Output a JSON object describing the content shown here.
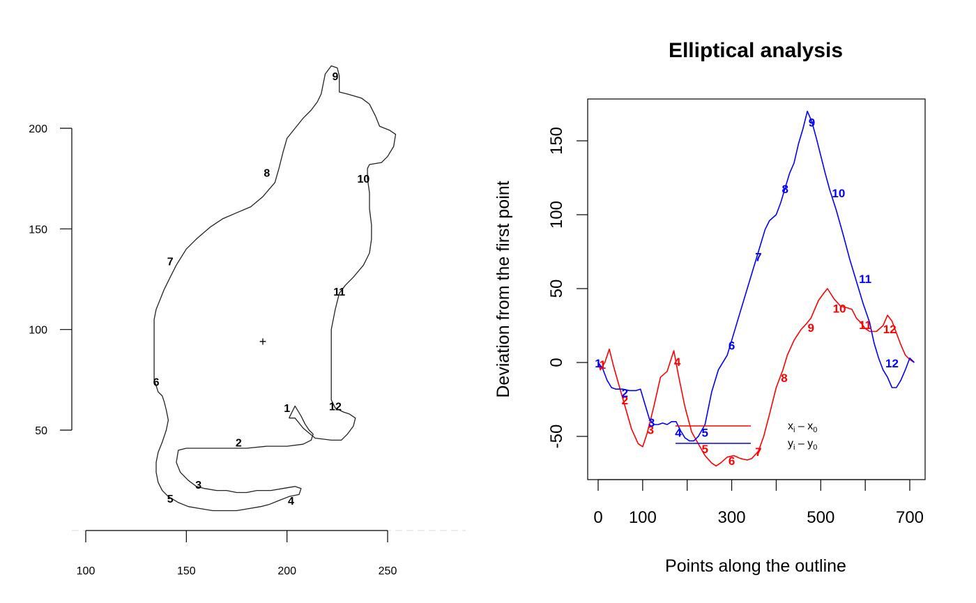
{
  "chart_data": [
    {
      "type": "line",
      "title": "",
      "xlabel": "",
      "ylabel": "",
      "xlim": [
        100,
        250
      ],
      "ylim": [
        50,
        200
      ],
      "x_ticks": [
        "100",
        "150",
        "200",
        "250"
      ],
      "y_ticks": [
        "50",
        "100",
        "150",
        "200"
      ],
      "grid": false,
      "centroid": {
        "x": 188,
        "y": 94,
        "marker": "+"
      },
      "outline_points": [
        [
          201,
          56
        ],
        [
          204,
          62
        ],
        [
          207,
          57
        ],
        [
          209,
          53
        ],
        [
          211,
          50
        ],
        [
          213,
          48
        ],
        [
          212,
          45
        ],
        [
          208,
          43
        ],
        [
          200,
          42
        ],
        [
          190,
          42
        ],
        [
          180,
          41
        ],
        [
          170,
          41
        ],
        [
          160,
          41
        ],
        [
          150,
          41
        ],
        [
          146,
          40
        ],
        [
          145,
          34
        ],
        [
          147,
          29
        ],
        [
          151,
          25
        ],
        [
          155,
          22
        ],
        [
          159,
          21
        ],
        [
          165,
          20
        ],
        [
          170,
          20
        ],
        [
          175,
          19
        ],
        [
          180,
          19
        ],
        [
          185,
          20
        ],
        [
          192,
          20
        ],
        [
          198,
          21
        ],
        [
          204,
          22
        ],
        [
          207,
          21
        ],
        [
          206,
          18
        ],
        [
          201,
          17
        ],
        [
          196,
          15
        ],
        [
          191,
          13
        ],
        [
          187,
          12
        ],
        [
          181,
          11
        ],
        [
          175,
          10
        ],
        [
          169,
          10
        ],
        [
          163,
          10
        ],
        [
          157,
          11
        ],
        [
          151,
          12
        ],
        [
          146,
          14
        ],
        [
          141,
          17
        ],
        [
          138,
          20
        ],
        [
          136,
          24
        ],
        [
          135,
          29
        ],
        [
          135,
          34
        ],
        [
          136,
          39
        ],
        [
          138,
          44
        ],
        [
          140,
          50
        ],
        [
          141,
          55
        ],
        [
          140,
          60
        ],
        [
          139,
          64
        ],
        [
          138,
          67
        ],
        [
          136,
          69
        ],
        [
          135,
          72
        ],
        [
          134,
          75
        ],
        [
          134,
          80
        ],
        [
          134,
          90
        ],
        [
          134,
          100
        ],
        [
          134,
          105
        ],
        [
          135,
          110
        ],
        [
          137,
          115
        ],
        [
          139,
          120
        ],
        [
          142,
          126
        ],
        [
          145,
          132
        ],
        [
          150,
          140
        ],
        [
          155,
          145
        ],
        [
          162,
          151
        ],
        [
          168,
          155
        ],
        [
          175,
          158
        ],
        [
          182,
          161
        ],
        [
          188,
          166
        ],
        [
          194,
          173
        ],
        [
          196,
          180
        ],
        [
          198,
          188
        ],
        [
          200,
          195
        ],
        [
          204,
          200
        ],
        [
          208,
          205
        ],
        [
          212,
          209
        ],
        [
          215,
          213
        ],
        [
          217,
          217
        ],
        [
          218,
          222
        ],
        [
          219,
          227
        ],
        [
          222,
          231
        ],
        [
          225,
          230
        ],
        [
          226,
          226
        ],
        [
          226,
          222
        ],
        [
          226,
          218
        ],
        [
          230,
          217
        ],
        [
          237,
          215
        ],
        [
          241,
          212
        ],
        [
          244,
          206
        ],
        [
          246,
          201
        ],
        [
          251,
          199
        ],
        [
          254,
          197
        ],
        [
          253,
          191
        ],
        [
          250,
          186
        ],
        [
          247,
          183
        ],
        [
          241,
          182
        ],
        [
          240,
          180
        ],
        [
          240,
          175
        ],
        [
          241,
          168
        ],
        [
          241,
          160
        ],
        [
          242,
          152
        ],
        [
          242,
          145
        ],
        [
          241,
          138
        ],
        [
          238,
          132
        ],
        [
          233,
          126
        ],
        [
          229,
          122
        ],
        [
          226,
          118
        ],
        [
          224,
          110
        ],
        [
          222,
          100
        ],
        [
          222,
          90
        ],
        [
          222,
          80
        ],
        [
          222,
          70
        ],
        [
          222,
          65
        ],
        [
          224,
          61
        ],
        [
          228,
          59
        ],
        [
          231,
          58
        ],
        [
          234,
          56
        ],
        [
          233,
          52
        ],
        [
          230,
          48
        ],
        [
          227,
          45
        ],
        [
          222,
          45
        ],
        [
          214,
          46
        ],
        [
          208,
          51
        ],
        [
          204,
          56
        ],
        [
          201,
          56
        ]
      ],
      "point_labels": [
        {
          "label": "1",
          "x": 200,
          "y": 61
        },
        {
          "label": "2",
          "x": 176,
          "y": 44
        },
        {
          "label": "3",
          "x": 156,
          "y": 23
        },
        {
          "label": "4",
          "x": 202,
          "y": 15
        },
        {
          "label": "5",
          "x": 142,
          "y": 16
        },
        {
          "label": "6",
          "x": 135,
          "y": 74
        },
        {
          "label": "7",
          "x": 142,
          "y": 134
        },
        {
          "label": "8",
          "x": 190,
          "y": 178
        },
        {
          "label": "9",
          "x": 224,
          "y": 226
        },
        {
          "label": "10",
          "x": 238,
          "y": 175
        },
        {
          "label": "11",
          "x": 226,
          "y": 119
        },
        {
          "label": "12",
          "x": 224,
          "y": 62
        }
      ],
      "series": []
    },
    {
      "type": "line",
      "title": "Elliptical analysis",
      "xlabel": "Points along the outline",
      "ylabel": "Deviation from the first point",
      "xlim": [
        0,
        710
      ],
      "ylim": [
        -75,
        175
      ],
      "x_ticks": [
        "0",
        "100",
        "300",
        "500",
        "700"
      ],
      "y_ticks": [
        "-50",
        "0",
        "50",
        "100",
        "150"
      ],
      "grid": false,
      "series": [
        {
          "name": "xᵢ − x₀",
          "color": "#ff0000",
          "points": [
            [
              0,
              0
            ],
            [
              5,
              -5
            ],
            [
              15,
              0
            ],
            [
              25,
              9
            ],
            [
              35,
              -3
            ],
            [
              55,
              -24
            ],
            [
              75,
              -45
            ],
            [
              90,
              -55
            ],
            [
              100,
              -57
            ],
            [
              110,
              -48
            ],
            [
              125,
              -30
            ],
            [
              140,
              -10
            ],
            [
              155,
              -6
            ],
            [
              170,
              8
            ],
            [
              180,
              -8
            ],
            [
              195,
              -30
            ],
            [
              210,
              -47
            ],
            [
              225,
              -55
            ],
            [
              240,
              -63
            ],
            [
              255,
              -68
            ],
            [
              265,
              -70
            ],
            [
              275,
              -68
            ],
            [
              290,
              -64
            ],
            [
              305,
              -63
            ],
            [
              320,
              -65
            ],
            [
              335,
              -66
            ],
            [
              345,
              -65
            ],
            [
              360,
              -60
            ],
            [
              372,
              -50
            ],
            [
              385,
              -35
            ],
            [
              400,
              -17
            ],
            [
              415,
              -5
            ],
            [
              425,
              5
            ],
            [
              440,
              15
            ],
            [
              455,
              22
            ],
            [
              470,
              27
            ],
            [
              478,
              30
            ],
            [
              485,
              35
            ],
            [
              495,
              42
            ],
            [
              507,
              47
            ],
            [
              515,
              50
            ],
            [
              530,
              43
            ],
            [
              545,
              38
            ],
            [
              560,
              37
            ],
            [
              570,
              36
            ],
            [
              580,
              30
            ],
            [
              590,
              27
            ],
            [
              600,
              23
            ],
            [
              610,
              21
            ],
            [
              625,
              21
            ],
            [
              640,
              25
            ],
            [
              650,
              32
            ],
            [
              660,
              28
            ],
            [
              670,
              20
            ],
            [
              680,
              12
            ],
            [
              690,
              5
            ],
            [
              700,
              2
            ],
            [
              710,
              0
            ]
          ],
          "point_labels": [
            {
              "label": "1",
              "x": 10,
              "y": -1
            },
            {
              "label": "2",
              "x": 60,
              "y": -25
            },
            {
              "label": "3",
              "x": 118,
              "y": -45
            },
            {
              "label": "4",
              "x": 178,
              "y": 1
            },
            {
              "label": "5",
              "x": 240,
              "y": -58
            },
            {
              "label": "6",
              "x": 300,
              "y": -66
            },
            {
              "label": "7",
              "x": 360,
              "y": -60
            },
            {
              "label": "8",
              "x": 418,
              "y": -10
            },
            {
              "label": "9",
              "x": 478,
              "y": 24
            },
            {
              "label": "10",
              "x": 542,
              "y": 37
            },
            {
              "label": "11",
              "x": 600,
              "y": 26
            },
            {
              "label": "12",
              "x": 655,
              "y": 23
            }
          ]
        },
        {
          "name": "yᵢ − y₀",
          "color": "#0000ff",
          "points": [
            [
              0,
              0
            ],
            [
              10,
              -4
            ],
            [
              20,
              -12
            ],
            [
              30,
              -17
            ],
            [
              40,
              -18
            ],
            [
              55,
              -18
            ],
            [
              70,
              -19
            ],
            [
              85,
              -19
            ],
            [
              95,
              -18
            ],
            [
              105,
              -28
            ],
            [
              115,
              -38
            ],
            [
              125,
              -42
            ],
            [
              135,
              -42
            ],
            [
              145,
              -41
            ],
            [
              155,
              -42
            ],
            [
              165,
              -40
            ],
            [
              175,
              -40
            ],
            [
              185,
              -46
            ],
            [
              195,
              -51
            ],
            [
              205,
              -53
            ],
            [
              215,
              -53
            ],
            [
              225,
              -50
            ],
            [
              240,
              -42
            ],
            [
              255,
              -20
            ],
            [
              270,
              -5
            ],
            [
              290,
              5
            ],
            [
              300,
              15
            ],
            [
              320,
              35
            ],
            [
              340,
              55
            ],
            [
              360,
              75
            ],
            [
              375,
              90
            ],
            [
              385,
              96
            ],
            [
              400,
              100
            ],
            [
              410,
              108
            ],
            [
              420,
              118
            ],
            [
              430,
              128
            ],
            [
              440,
              135
            ],
            [
              450,
              148
            ],
            [
              460,
              158
            ],
            [
              470,
              170
            ],
            [
              480,
              163
            ],
            [
              490,
              152
            ],
            [
              500,
              140
            ],
            [
              510,
              128
            ],
            [
              520,
              117
            ],
            [
              535,
              103
            ],
            [
              550,
              87
            ],
            [
              565,
              70
            ],
            [
              580,
              55
            ],
            [
              595,
              40
            ],
            [
              610,
              27
            ],
            [
              620,
              13
            ],
            [
              630,
              3
            ],
            [
              640,
              -5
            ],
            [
              650,
              -10
            ],
            [
              660,
              -17
            ],
            [
              670,
              -17
            ],
            [
              680,
              -12
            ],
            [
              690,
              -5
            ],
            [
              700,
              3
            ],
            [
              710,
              0
            ]
          ],
          "point_labels": [
            {
              "label": "1",
              "x": 0,
              "y": 0
            },
            {
              "label": "2",
              "x": 60,
              "y": -20
            },
            {
              "label": "3",
              "x": 120,
              "y": -40
            },
            {
              "label": "4",
              "x": 180,
              "y": -47
            },
            {
              "label": "5",
              "x": 240,
              "y": -47
            },
            {
              "label": "6",
              "x": 300,
              "y": 12
            },
            {
              "label": "7",
              "x": 360,
              "y": 72
            },
            {
              "label": "8",
              "x": 420,
              "y": 118
            },
            {
              "label": "9",
              "x": 480,
              "y": 163
            },
            {
              "label": "10",
              "x": 540,
              "y": 115
            },
            {
              "label": "11",
              "x": 600,
              "y": 57
            },
            {
              "label": "12",
              "x": 660,
              "y": 0
            }
          ]
        }
      ],
      "legend": {
        "placement": "bottom-center",
        "entries": [
          {
            "series": "xᵢ − x₀",
            "sub_a": "i",
            "sub_b": "0",
            "var": "x",
            "color": "#ff0000"
          },
          {
            "series": "yᵢ − y₀",
            "sub_a": "i",
            "sub_b": "0",
            "var": "y",
            "color": "#0000ff"
          }
        ]
      }
    }
  ]
}
